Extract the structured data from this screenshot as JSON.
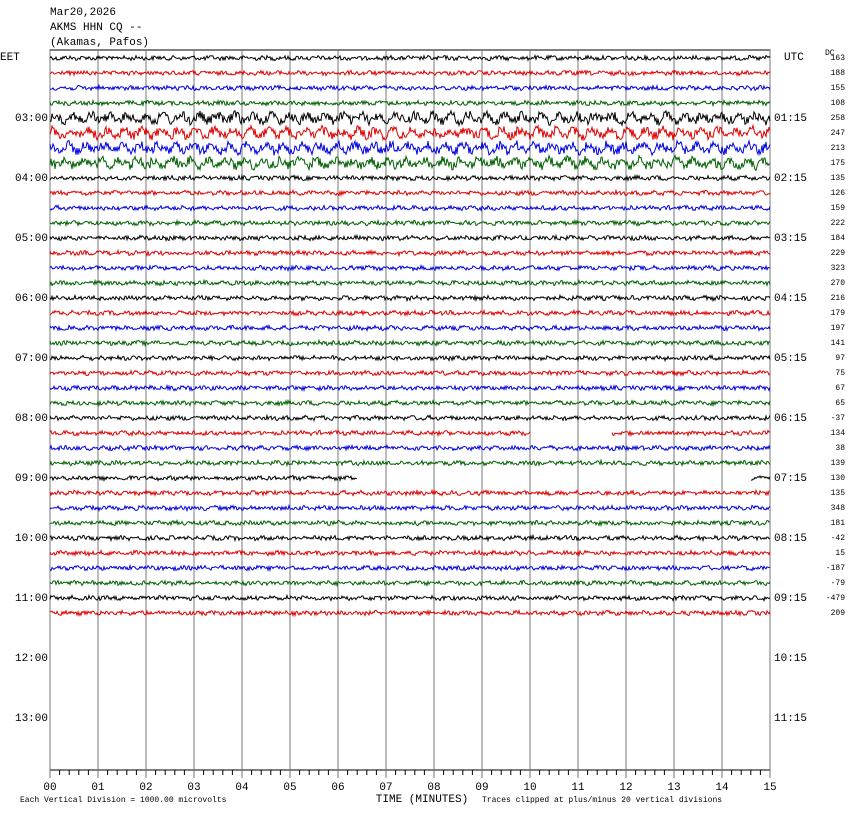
{
  "header": {
    "date": "Mar20,2026",
    "station": "AKMS HHN CQ --",
    "location": "(Akamas, Pafos)"
  },
  "left_axis": {
    "title": "EET",
    "labels": [
      "03:00",
      "04:00",
      "05:00",
      "06:00",
      "07:00",
      "08:00",
      "09:00",
      "10:00",
      "11:00",
      "12:00",
      "13:00"
    ]
  },
  "right_axis": {
    "title": "UTC",
    "dc_title": "DC",
    "labels": [
      "01:15",
      "02:15",
      "03:15",
      "04:15",
      "05:15",
      "06:15",
      "07:15",
      "08:15",
      "09:15",
      "10:15",
      "11:15"
    ]
  },
  "x_axis": {
    "title": "TIME (MINUTES)",
    "ticks": [
      "00",
      "01",
      "02",
      "03",
      "04",
      "05",
      "06",
      "07",
      "08",
      "09",
      "10",
      "11",
      "12",
      "13",
      "14",
      "15"
    ]
  },
  "footer": {
    "left": "Each Vertical Division = 1000.00 microvolts",
    "right": "Traces clipped at plus/minus 20 vertical divisions"
  },
  "traces": {
    "colors": [
      "#000000",
      "#e00000",
      "#0000e0",
      "#006000"
    ],
    "dc": [
      163,
      188,
      155,
      108,
      258,
      247,
      213,
      175,
      135,
      126,
      159,
      222,
      184,
      229,
      323,
      270,
      216,
      179,
      197,
      141,
      97,
      75,
      67,
      65,
      -37,
      134,
      38,
      139,
      130,
      135,
      348,
      181,
      -42,
      15,
      -187,
      -79,
      -479,
      209
    ],
    "gaps": [
      [],
      [],
      [],
      [],
      [],
      [],
      [],
      [],
      [],
      [],
      [],
      [],
      [],
      [],
      [],
      [],
      [],
      [],
      [],
      [],
      [],
      [],
      [],
      [],
      [],
      [
        10.0,
        11.7
      ],
      [],
      [],
      [
        6.4,
        14.6
      ],
      [],
      [],
      [],
      [],
      [],
      [],
      [],
      [],
      []
    ]
  }
}
